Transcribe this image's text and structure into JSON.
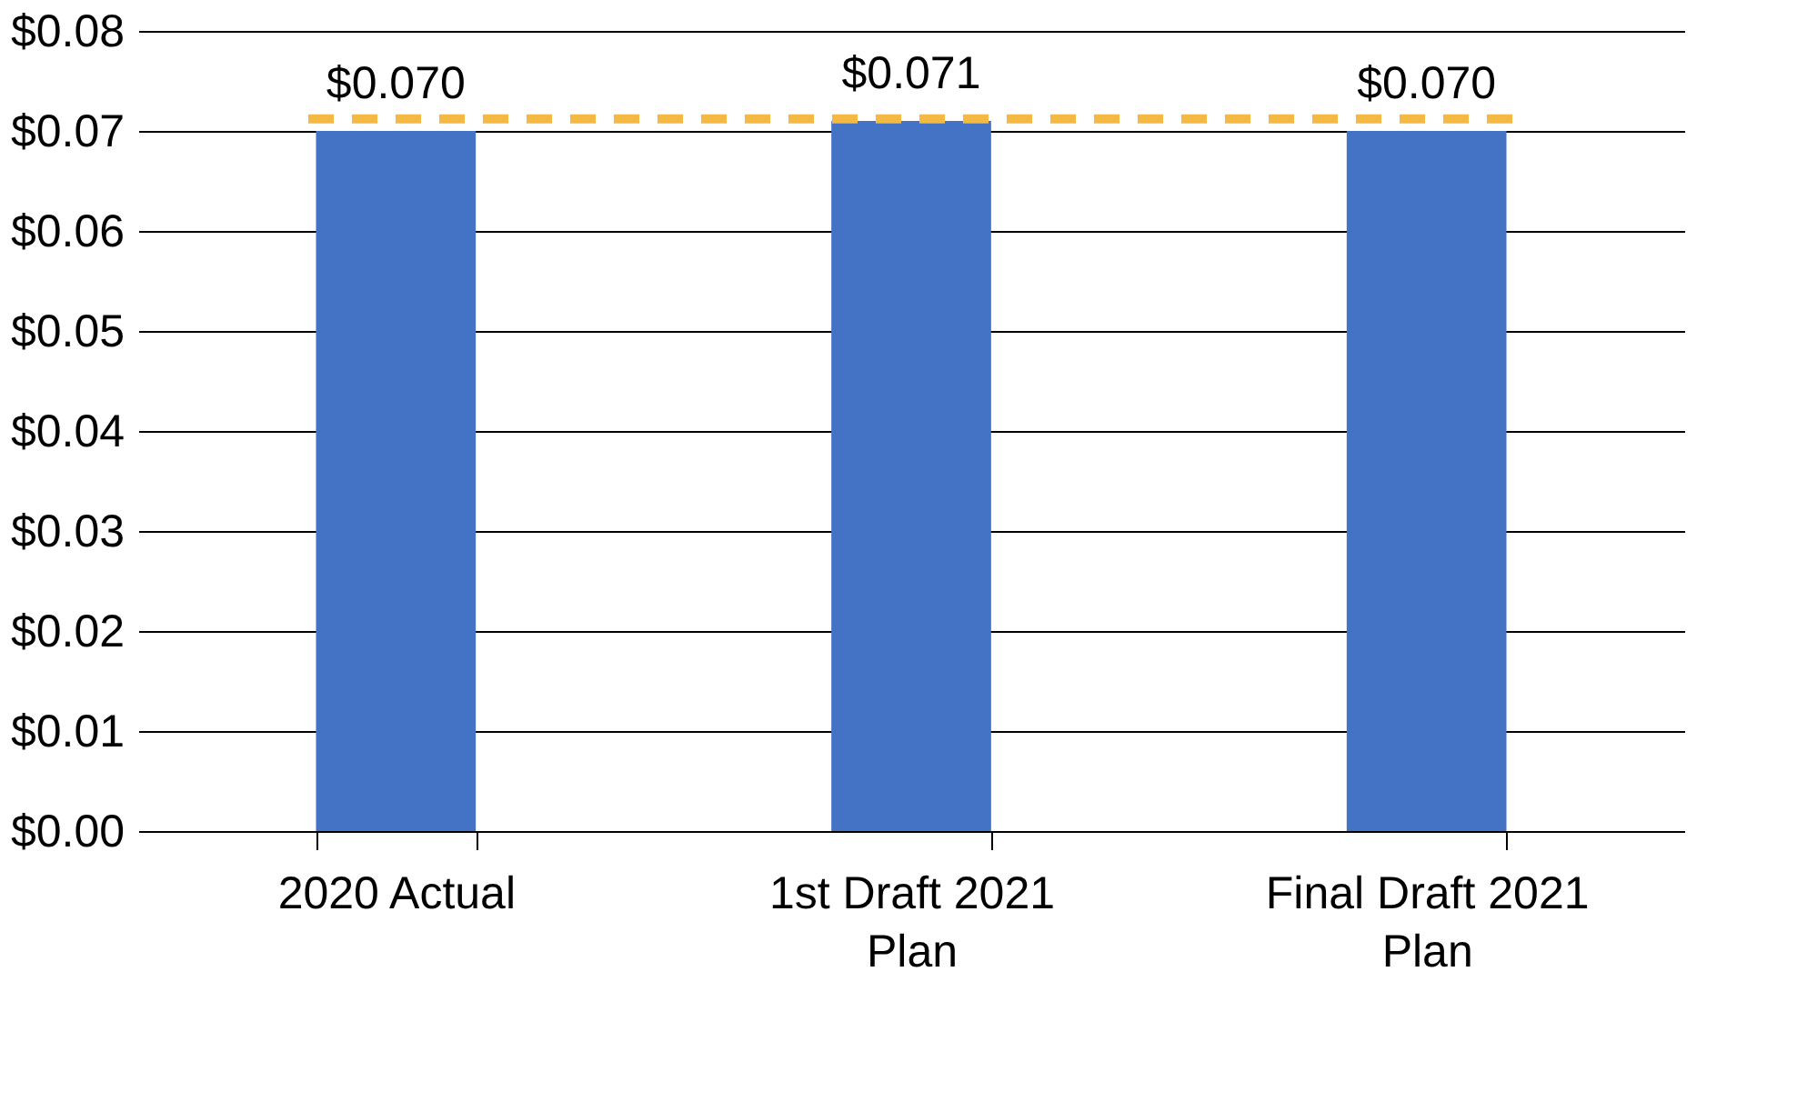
{
  "chart_data": {
    "type": "bar",
    "categories": [
      "2020 Actual",
      "1st Draft 2021 Plan",
      "Final Draft 2021 Plan"
    ],
    "values": [
      0.07,
      0.071,
      0.07
    ],
    "color": "#4472c4",
    "value_labels": [
      "$0.070",
      "$0.071",
      "$0.070"
    ],
    "ylim": [
      0,
      0.08
    ],
    "yticks": [
      {
        "value": 0,
        "label": "$0.00"
      },
      {
        "value": 0.01,
        "label": "$0.01"
      },
      {
        "value": 0.02,
        "label": "$0.02"
      },
      {
        "value": 0.03,
        "label": "$0.03"
      },
      {
        "value": 0.04,
        "label": "$0.04"
      },
      {
        "value": 0.05,
        "label": "$0.05"
      },
      {
        "value": 0.06,
        "label": "$0.06"
      },
      {
        "value": 0.07,
        "label": "$0.07"
      },
      {
        "value": 0.08,
        "label": "$0.08"
      }
    ],
    "ref_lines": [
      {
        "axis": "y",
        "value": 0.0712,
        "color": "#f4b942",
        "line_style": "dashed"
      }
    ],
    "grid": "y"
  }
}
